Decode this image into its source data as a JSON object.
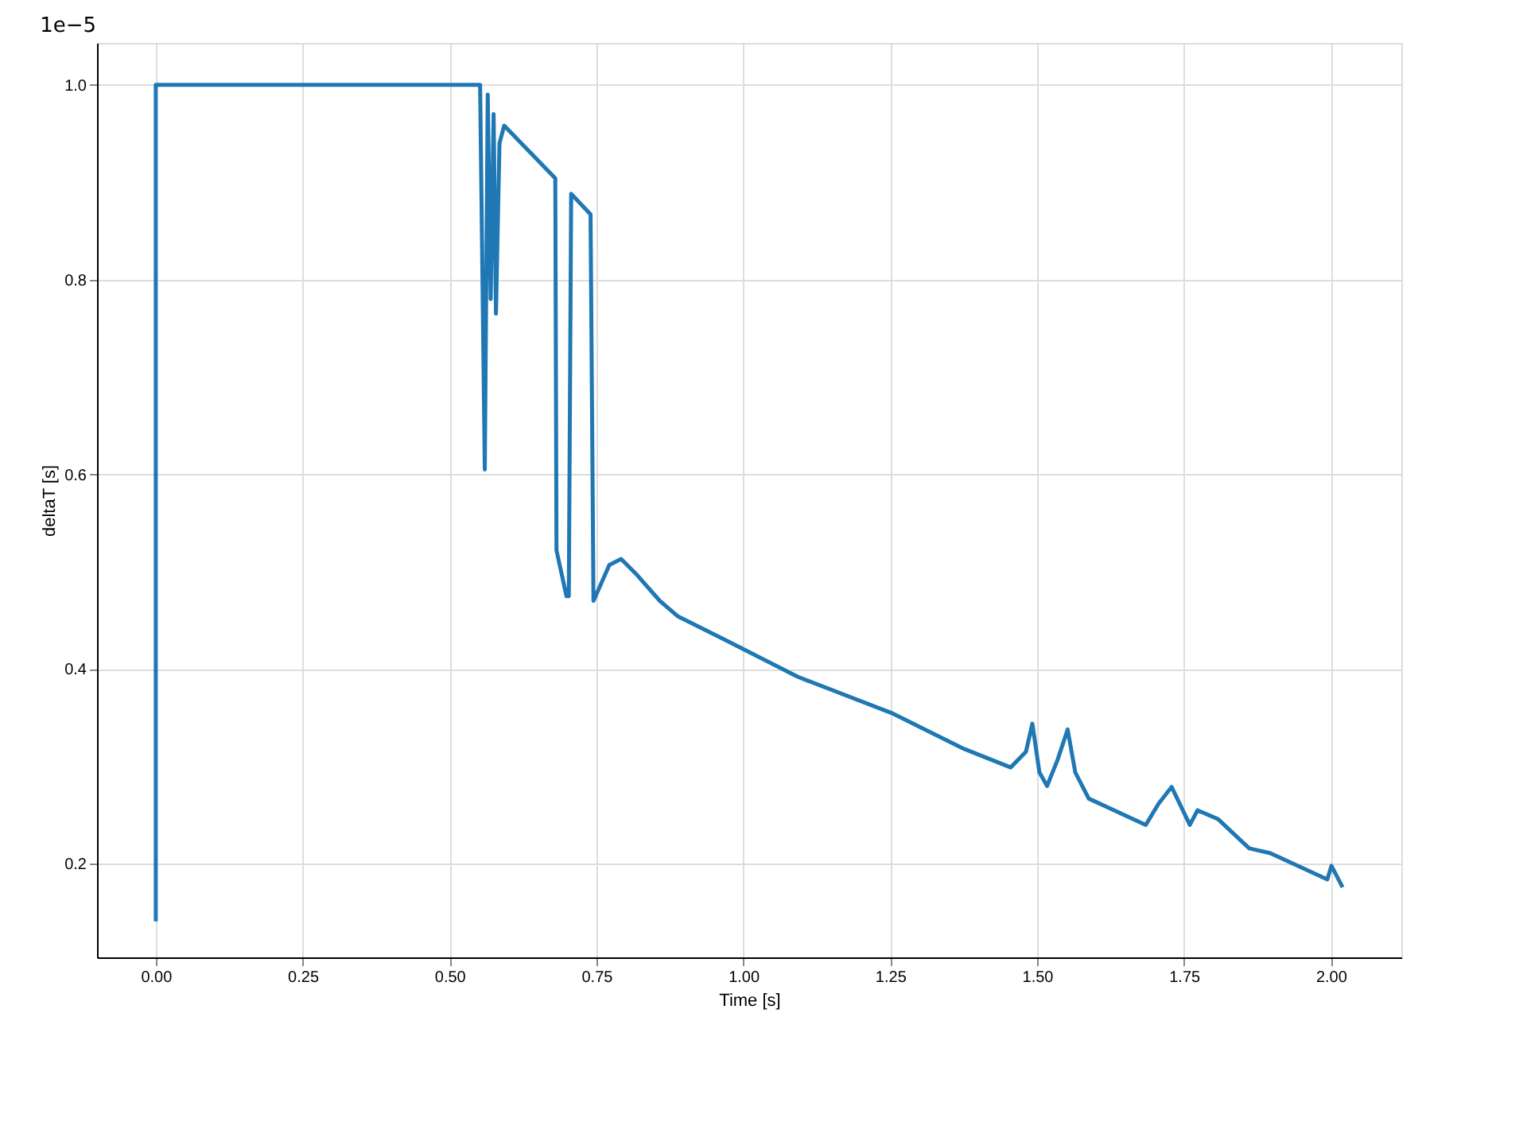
{
  "chart_data": {
    "type": "line",
    "xlabel": "Time [s]",
    "ylabel": "deltaT [s]",
    "annotations": [
      "1e−5"
    ],
    "x": [
      0,
      0,
      0.552,
      0.56,
      0.565,
      0.57,
      0.575,
      0.579,
      0.585,
      0.593,
      0.68,
      0.682,
      0.699,
      0.703,
      0.707,
      0.74,
      0.745,
      0.772,
      0.792,
      0.817,
      0.858,
      0.889,
      0.969,
      1.093,
      1.252,
      1.376,
      1.455,
      1.481,
      1.492,
      1.504,
      1.517,
      1.535,
      1.552,
      1.565,
      1.588,
      1.685,
      1.707,
      1.729,
      1.76,
      1.773,
      1.808,
      1.861,
      1.897,
      1.994,
      2.001,
      2.02
    ],
    "series": [
      {
        "color": "#1f77b4",
        "values": [
          0.141,
          1.0,
          1.0,
          0.605,
          0.99,
          0.78,
          0.97,
          0.765,
          0.94,
          0.958,
          0.904,
          0.522,
          0.475,
          0.475,
          0.888,
          0.867,
          0.47,
          0.507,
          0.513,
          0.498,
          0.47,
          0.454,
          0.43,
          0.392,
          0.355,
          0.318,
          0.299,
          0.315,
          0.344,
          0.294,
          0.28,
          0.307,
          0.338,
          0.294,
          0.267,
          0.24,
          0.262,
          0.279,
          0.24,
          0.255,
          0.246,
          0.216,
          0.211,
          0.184,
          0.198,
          0.176
        ]
      }
    ],
    "xlim": [
      -0.1,
      2.12
    ],
    "ylim": [
      0.104,
      1.043
    ],
    "xticks": [
      {
        "value": 0,
        "label": "0.00"
      },
      0.25,
      {
        "value": 0.5,
        "label": "0.50"
      },
      0.75,
      {
        "value": 1,
        "label": "1.00"
      },
      1.25,
      {
        "value": 1.5,
        "label": "1.50"
      },
      1.75,
      {
        "value": 2,
        "label": "2.00"
      }
    ],
    "yticks": [
      0.2,
      0.4,
      0.6,
      0.8,
      {
        "value": 1,
        "label": "1.0"
      }
    ],
    "grid": true,
    "line_style": "solid",
    "marker": "none"
  }
}
